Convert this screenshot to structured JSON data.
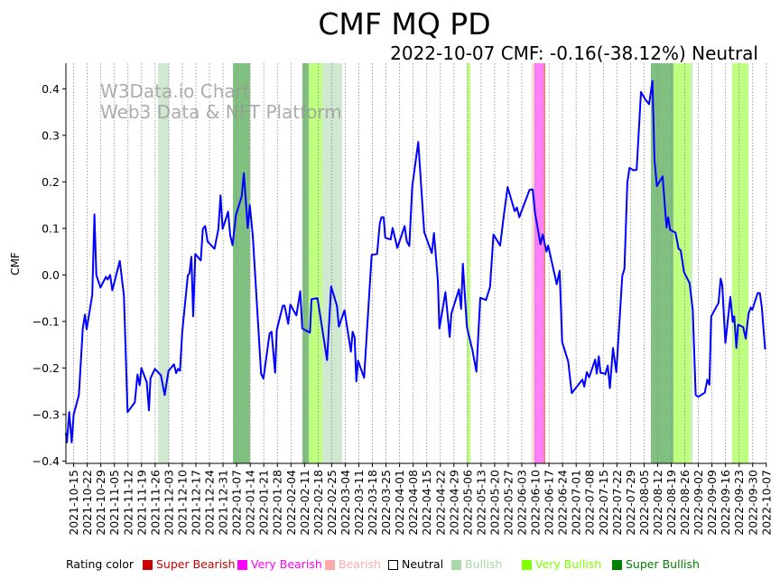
{
  "chart_data": {
    "type": "line",
    "title": "CMF MQ PD",
    "subtitle": "2022-10-07 CMF: -0.16(-38.12%) Neutral",
    "ylabel": "CMF",
    "xlabel": "",
    "x_unit": "days since 2021-10-11",
    "xlim": [
      0,
      361
    ],
    "ylim": [
      -0.405,
      0.455
    ],
    "grid": "vertical dotted at x ticks",
    "yticks": [
      {
        "v": 0.4,
        "label": "0.4"
      },
      {
        "v": 0.3,
        "label": "0.3"
      },
      {
        "v": 0.2,
        "label": "0.2"
      },
      {
        "v": 0.1,
        "label": "0.1"
      },
      {
        "v": 0.0,
        "label": "0.0"
      },
      {
        "v": -0.1,
        "label": "−0.1"
      },
      {
        "v": -0.2,
        "label": "−0.2"
      },
      {
        "v": -0.3,
        "label": "−0.3"
      },
      {
        "v": -0.4,
        "label": "−0.4"
      }
    ],
    "xtick_first_day": 4,
    "xtick_step_days": 7,
    "xticks": [
      "2021-10-15",
      "2021-10-22",
      "2021-10-29",
      "2021-11-05",
      "2021-11-12",
      "2021-11-19",
      "2021-11-26",
      "2021-12-03",
      "2021-12-10",
      "2021-12-17",
      "2021-12-24",
      "2021-12-31",
      "2022-01-07",
      "2022-01-14",
      "2022-01-21",
      "2022-01-28",
      "2022-02-04",
      "2022-02-11",
      "2022-02-18",
      "2022-02-25",
      "2022-03-04",
      "2022-03-11",
      "2022-03-18",
      "2022-03-25",
      "2022-04-01",
      "2022-04-08",
      "2022-04-15",
      "2022-04-22",
      "2022-04-29",
      "2022-05-06",
      "2022-05-13",
      "2022-05-20",
      "2022-05-27",
      "2022-06-03",
      "2022-06-10",
      "2022-06-17",
      "2022-06-24",
      "2022-07-01",
      "2022-07-08",
      "2022-07-15",
      "2022-07-22",
      "2022-07-29",
      "2022-08-05",
      "2022-08-12",
      "2022-08-19",
      "2022-08-26",
      "2022-09-02",
      "2022-09-09",
      "2022-09-16",
      "2022-09-23",
      "2022-09-30",
      "2022-10-07"
    ],
    "series": [
      {
        "name": "CMF",
        "color": "#0000ff",
        "points": [
          [
            0,
            -0.34
          ],
          [
            0.5,
            -0.36
          ],
          [
            1.7,
            -0.295
          ],
          [
            3,
            -0.36
          ],
          [
            4,
            -0.3
          ],
          [
            6.7,
            -0.258
          ],
          [
            8.7,
            -0.115
          ],
          [
            9.8,
            -0.085
          ],
          [
            10.7,
            -0.117
          ],
          [
            13.6,
            -0.043
          ],
          [
            14.7,
            0.13
          ],
          [
            15.7,
            0.0
          ],
          [
            17.8,
            -0.027
          ],
          [
            20.6,
            -0.004
          ],
          [
            21.5,
            -0.01
          ],
          [
            22.8,
            0.0
          ],
          [
            23.9,
            -0.033
          ],
          [
            27.8,
            0.03
          ],
          [
            29.9,
            -0.045
          ],
          [
            31.8,
            -0.295
          ],
          [
            35.5,
            -0.274
          ],
          [
            36.9,
            -0.214
          ],
          [
            38,
            -0.237
          ],
          [
            38.9,
            -0.2
          ],
          [
            41.7,
            -0.231
          ],
          [
            42.8,
            -0.291
          ],
          [
            43.6,
            -0.222
          ],
          [
            45.9,
            -0.202
          ],
          [
            49,
            -0.216
          ],
          [
            50.9,
            -0.258
          ],
          [
            52.9,
            -0.206
          ],
          [
            55.7,
            -0.192
          ],
          [
            56.8,
            -0.211
          ],
          [
            57.8,
            -0.202
          ],
          [
            58.8,
            -0.206
          ],
          [
            60,
            -0.122
          ],
          [
            62.8,
            -0.002
          ],
          [
            63.7,
            0.004
          ],
          [
            64.7,
            0.039
          ],
          [
            65.6,
            -0.089
          ],
          [
            66.7,
            0.045
          ],
          [
            69.5,
            0.031
          ],
          [
            70.6,
            0.099
          ],
          [
            71.8,
            0.105
          ],
          [
            73,
            0.072
          ],
          [
            76.6,
            0.056
          ],
          [
            78.6,
            0.099
          ],
          [
            79.7,
            0.171
          ],
          [
            80.8,
            0.099
          ],
          [
            83.6,
            0.136
          ],
          [
            84.7,
            0.085
          ],
          [
            85.9,
            0.064
          ],
          [
            87.6,
            0.128
          ],
          [
            90.6,
            0.169
          ],
          [
            91.7,
            0.219
          ],
          [
            93.7,
            0.101
          ],
          [
            94.8,
            0.15
          ],
          [
            96.3,
            0.085
          ],
          [
            100.6,
            -0.212
          ],
          [
            101.8,
            -0.223
          ],
          [
            105,
            -0.126
          ],
          [
            106,
            -0.122
          ],
          [
            107.8,
            -0.21
          ],
          [
            108.7,
            -0.118
          ],
          [
            111.8,
            -0.066
          ],
          [
            112.7,
            -0.066
          ],
          [
            114.6,
            -0.105
          ],
          [
            115.7,
            -0.064
          ],
          [
            118.8,
            -0.087
          ],
          [
            120.8,
            -0.035
          ],
          [
            121.8,
            -0.115
          ],
          [
            125.8,
            -0.124
          ],
          [
            126.6,
            -0.052
          ],
          [
            129.7,
            -0.05
          ],
          [
            134.6,
            -0.183
          ],
          [
            136.7,
            -0.025
          ],
          [
            139.7,
            -0.066
          ],
          [
            140.7,
            -0.111
          ],
          [
            143.6,
            -0.076
          ],
          [
            146.9,
            -0.165
          ],
          [
            147.8,
            -0.122
          ],
          [
            148.8,
            -0.134
          ],
          [
            149.7,
            -0.229
          ],
          [
            150.6,
            -0.184
          ],
          [
            153.7,
            -0.221
          ],
          [
            157.6,
            0.043
          ],
          [
            160.4,
            0.045
          ],
          [
            161.8,
            0.111
          ],
          [
            162.7,
            0.124
          ],
          [
            163.8,
            0.124
          ],
          [
            164.6,
            0.08
          ],
          [
            167.4,
            0.076
          ],
          [
            168.4,
            0.101
          ],
          [
            170.8,
            0.058
          ],
          [
            174.6,
            0.105
          ],
          [
            175.7,
            0.072
          ],
          [
            177,
            0.062
          ],
          [
            178.5,
            0.189
          ],
          [
            181.6,
            0.286
          ],
          [
            184.7,
            0.092
          ],
          [
            188.6,
            0.047
          ],
          [
            189.7,
            0.09
          ],
          [
            191.7,
            -0.012
          ],
          [
            192.5,
            -0.115
          ],
          [
            195.6,
            -0.037
          ],
          [
            197.8,
            -0.133
          ],
          [
            198.7,
            -0.083
          ],
          [
            202.6,
            -0.031
          ],
          [
            203.7,
            -0.073
          ],
          [
            204.6,
            0.024
          ],
          [
            206.7,
            -0.112
          ],
          [
            209.5,
            -0.161
          ],
          [
            211.6,
            -0.208
          ],
          [
            213.6,
            -0.049
          ],
          [
            216.5,
            -0.054
          ],
          [
            218.6,
            -0.026
          ],
          [
            220.4,
            0.087
          ],
          [
            223.8,
            0.063
          ],
          [
            225.8,
            0.131
          ],
          [
            227.7,
            0.189
          ],
          [
            231.3,
            0.137
          ],
          [
            232.5,
            0.145
          ],
          [
            233.7,
            0.124
          ],
          [
            239,
            0.183
          ],
          [
            240.6,
            0.184
          ],
          [
            241.8,
            0.134
          ],
          [
            244.6,
            0.066
          ],
          [
            245.8,
            0.087
          ],
          [
            247.7,
            0.05
          ],
          [
            248.6,
            0.063
          ],
          [
            253,
            -0.02
          ],
          [
            254.5,
            0.009
          ],
          [
            255.8,
            -0.144
          ],
          [
            258.9,
            -0.186
          ],
          [
            260.7,
            -0.254
          ],
          [
            266.2,
            -0.225
          ],
          [
            267.2,
            -0.24
          ],
          [
            268.5,
            -0.209
          ],
          [
            269.7,
            -0.22
          ],
          [
            272.8,
            -0.182
          ],
          [
            273.6,
            -0.212
          ],
          [
            274.7,
            -0.175
          ],
          [
            275.5,
            -0.21
          ],
          [
            277.8,
            -0.212
          ],
          [
            278,
            -0.214
          ],
          [
            279.3,
            -0.195
          ],
          [
            280.4,
            -0.243
          ],
          [
            282,
            -0.157
          ],
          [
            283.7,
            -0.209
          ],
          [
            286.8,
            -0.002
          ],
          [
            287.9,
            0.013
          ],
          [
            289.4,
            0.199
          ],
          [
            290.5,
            0.23
          ],
          [
            292.5,
            0.225
          ],
          [
            294.2,
            0.226
          ],
          [
            296.4,
            0.393
          ],
          [
            298.7,
            0.377
          ],
          [
            300.6,
            0.367
          ],
          [
            302.3,
            0.417
          ],
          [
            303.4,
            0.247
          ],
          [
            304.6,
            0.191
          ],
          [
            307.6,
            0.212
          ],
          [
            309.6,
            0.102
          ],
          [
            310.4,
            0.124
          ],
          [
            311.4,
            0.097
          ],
          [
            314.2,
            0.091
          ],
          [
            315.8,
            0.056
          ],
          [
            316.9,
            0.053
          ],
          [
            318.6,
            0.006
          ],
          [
            321.5,
            -0.018
          ],
          [
            323.1,
            -0.076
          ],
          [
            324.6,
            -0.258
          ],
          [
            325.9,
            -0.262
          ],
          [
            329.3,
            -0.253
          ],
          [
            330.6,
            -0.225
          ],
          [
            331.7,
            -0.236
          ],
          [
            332.6,
            -0.089
          ],
          [
            336.4,
            -0.06
          ],
          [
            337.5,
            -0.008
          ],
          [
            338.3,
            -0.021
          ],
          [
            339.9,
            -0.146
          ],
          [
            342.5,
            -0.047
          ],
          [
            343.7,
            -0.101
          ],
          [
            344.5,
            -0.089
          ],
          [
            345.6,
            -0.157
          ],
          [
            346.5,
            -0.107
          ],
          [
            349.1,
            -0.112
          ],
          [
            350.4,
            -0.137
          ],
          [
            351.9,
            -0.083
          ],
          [
            353,
            -0.07
          ],
          [
            353.8,
            -0.075
          ],
          [
            356.6,
            -0.039
          ],
          [
            357.7,
            -0.039
          ],
          [
            358.7,
            -0.07
          ],
          [
            360.4,
            -0.16
          ]
        ]
      }
    ],
    "rating_bands": [
      {
        "rating": "Bullish",
        "start": 47.5,
        "end": 53.1
      },
      {
        "rating": "Super Bullish",
        "start": 86.1,
        "end": 94.9
      },
      {
        "rating": "Super Bullish",
        "start": 121.9,
        "end": 125.2
      },
      {
        "rating": "Very Bullish",
        "start": 125.2,
        "end": 132.2
      },
      {
        "rating": "Bullish",
        "start": 132.2,
        "end": 142.4
      },
      {
        "rating": "Very Bullish",
        "start": 206.6,
        "end": 208.5
      },
      {
        "rating": "Bearish",
        "start": 240.1,
        "end": 241.5
      },
      {
        "rating": "Very Bearish",
        "start": 241.5,
        "end": 246.2
      },
      {
        "rating": "Super Bearish",
        "start": 246.2,
        "end": 247.1
      },
      {
        "rating": "Super Bullish",
        "start": 301.5,
        "end": 313.2
      },
      {
        "rating": "Very Bullish",
        "start": 313.2,
        "end": 322
      },
      {
        "rating": "Bullish",
        "start": 322,
        "end": 323
      },
      {
        "rating": "Very Bullish",
        "start": 343.4,
        "end": 351.8
      }
    ],
    "legend": {
      "title": "Rating color",
      "placement": "bottom",
      "items": [
        {
          "label": "Super Bearish",
          "color": "#cc0000",
          "band": "#e58080"
        },
        {
          "label": "Very Bearish",
          "color": "#ff00ff",
          "band": "#ff80ff"
        },
        {
          "label": "Bearish",
          "color": "#ffaaaa",
          "band": "#ffd4d4"
        },
        {
          "label": "Neutral",
          "color": "#000000",
          "band": "none"
        },
        {
          "label": "Bullish",
          "color": "#a8d8a8",
          "band": "#d0e8d0"
        },
        {
          "label": "Very Bullish",
          "color": "#7fff00",
          "band": "#bfff80"
        },
        {
          "label": "Super Bullish",
          "color": "#008000",
          "band": "#80c080"
        }
      ]
    }
  },
  "watermark": {
    "line1": "W3Data.io Chart",
    "line2": "Web3 Data & NFT Platform"
  }
}
